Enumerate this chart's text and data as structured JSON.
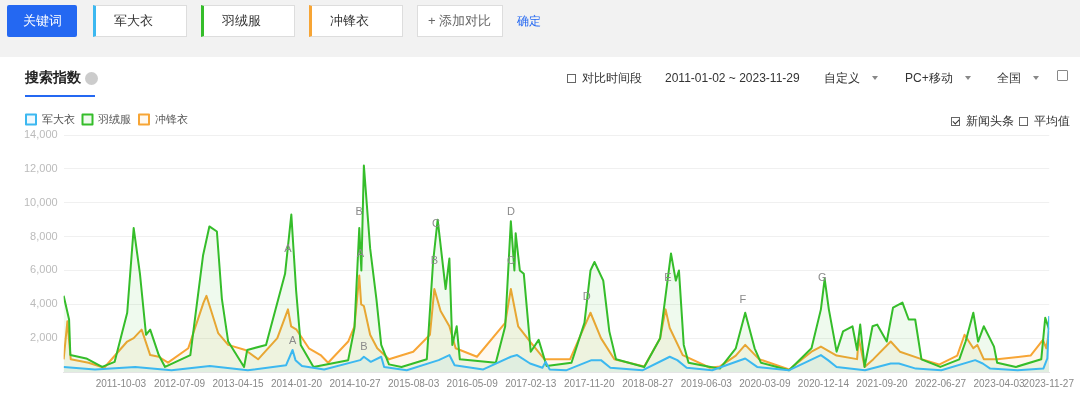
{
  "chart_data": {
    "type": "area",
    "title": "搜索指数",
    "annotations": [
      "关键词",
      "军大衣",
      "羽绒服",
      "冲锋衣",
      "+ 添加对比",
      "确定",
      "对比时间段",
      "2011-01-02 ~ 2023-11-29",
      "自定义",
      "PC+移动",
      "全国",
      "新闻头条",
      "平均值",
      {
        "text": "A",
        "x": "2013-12-10",
        "y": 6700
      },
      {
        "text": "B",
        "x": "2014-11-16",
        "y": 8900
      },
      {
        "text": "A",
        "x": "2014-11-22",
        "y": 6400
      },
      {
        "text": "A",
        "x": "2014-01-01",
        "y": 1300
      },
      {
        "text": "B",
        "x": "2014-12-08",
        "y": 900
      },
      {
        "text": "C",
        "x": "2015-11-18",
        "y": 8200
      },
      {
        "text": "B",
        "x": "2015-11-10",
        "y": 6000
      },
      {
        "text": "D",
        "x": "2016-11-10",
        "y": 8900
      },
      {
        "text": "C",
        "x": "2016-11-10",
        "y": 6000
      },
      {
        "text": "D",
        "x": "2017-11-08",
        "y": 3900
      },
      {
        "text": "E",
        "x": "2018-12-01",
        "y": 5000
      },
      {
        "text": "F",
        "x": "2019-11-25",
        "y": 3700
      },
      {
        "text": "G",
        "x": "2020-12-08",
        "y": 5000
      }
    ],
    "xlim": [
      "2011-01-02",
      "2023-11-29"
    ],
    "xticks": [
      "2011-10-03",
      "2012-07-09",
      "2013-04-15",
      "2014-01-20",
      "2014-10-27",
      "2015-08-03",
      "2016-05-09",
      "2017-02-13",
      "2017-11-20",
      "2018-08-27",
      "2019-06-03",
      "2020-03-09",
      "2020-12-14",
      "2021-09-20",
      "2022-06-27",
      "2023-04-03",
      "2023-11-27"
    ],
    "ylim": [
      0,
      14000
    ],
    "yticks": [
      {
        "value": 2000,
        "label": "2,000"
      },
      {
        "value": 4000,
        "label": "4,000"
      },
      {
        "value": 6000,
        "label": "6,000"
      },
      {
        "value": 8000,
        "label": "8,000"
      },
      {
        "value": 10000,
        "label": "10,000"
      },
      {
        "value": 12000,
        "label": "12,000"
      },
      {
        "value": 14000,
        "label": "14,000"
      }
    ],
    "grid": "y",
    "legend": "top left",
    "marker": "none",
    "line_style": "solid",
    "series": [
      {
        "name": "军大衣",
        "color": "#3cb8f0",
        "x": [
          "2011-01-02",
          "2011-06-01",
          "2011-12-10",
          "2012-06-01",
          "2012-12-01",
          "2013-06-01",
          "2013-12-01",
          "2014-01-01",
          "2014-01-15",
          "2014-02-15",
          "2014-06-01",
          "2014-11-20",
          "2014-12-08",
          "2015-01-10",
          "2015-03-01",
          "2015-03-15",
          "2015-07-01",
          "2015-12-01",
          "2016-01-21",
          "2016-02-15",
          "2016-07-01",
          "2016-11-10",
          "2016-12-10",
          "2017-02-10",
          "2017-04-10",
          "2017-04-25",
          "2017-05-15",
          "2017-08-01",
          "2017-12-01",
          "2018-01-15",
          "2018-03-01",
          "2018-08-01",
          "2018-12-10",
          "2019-01-15",
          "2019-03-01",
          "2019-07-01",
          "2019-12-06",
          "2020-02-01",
          "2020-07-01",
          "2020-12-02",
          "2021-01-05",
          "2021-02-15",
          "2021-07-01",
          "2021-11-01",
          "2021-12-10",
          "2022-03-01",
          "2022-07-01",
          "2022-12-10",
          "2023-01-15",
          "2023-02-20",
          "2023-07-01",
          "2023-11-01",
          "2023-11-20",
          "2023-11-29"
        ],
        "values": [
          300,
          150,
          300,
          100,
          350,
          100,
          400,
          1300,
          700,
          350,
          150,
          700,
          900,
          600,
          900,
          300,
          100,
          700,
          1000,
          400,
          150,
          900,
          1000,
          500,
          250,
          600,
          150,
          100,
          700,
          700,
          250,
          100,
          900,
          700,
          250,
          100,
          800,
          300,
          100,
          1000,
          700,
          300,
          100,
          500,
          500,
          200,
          100,
          700,
          500,
          200,
          100,
          200,
          800,
          3300
        ]
      },
      {
        "name": "羽绒服",
        "color": "#35bd2a",
        "x": [
          "2011-01-02",
          "2011-01-28",
          "2011-02-03",
          "2011-04-20",
          "2011-07-05",
          "2011-09-03",
          "2011-11-02",
          "2011-12-03",
          "2012-01-02",
          "2012-01-31",
          "2012-02-20",
          "2012-04-01",
          "2012-05-01",
          "2012-08-30",
          "2012-10-30",
          "2012-11-29",
          "2013-01-04",
          "2013-01-28",
          "2013-02-27",
          "2013-05-14",
          "2013-05-29",
          "2013-08-27",
          "2013-11-26",
          "2013-12-26",
          "2014-01-18",
          "2014-02-09",
          "2014-04-11",
          "2014-09-24",
          "2014-10-24",
          "2014-11-16",
          "2014-11-26",
          "2014-12-08",
          "2015-01-07",
          "2015-02-06",
          "2015-03-01",
          "2015-04-07",
          "2015-06-06",
          "2015-10-05",
          "2015-11-04",
          "2015-11-26",
          "2016-01-03",
          "2016-01-21",
          "2016-02-04",
          "2016-02-25",
          "2016-03-11",
          "2016-08-30",
          "2016-10-14",
          "2016-11-10",
          "2016-11-27",
          "2016-12-03",
          "2016-12-23",
          "2017-01-11",
          "2017-02-13",
          "2017-03-23",
          "2017-04-30",
          "2017-08-27",
          "2017-10-28",
          "2017-11-26",
          "2017-12-15",
          "2018-01-26",
          "2018-02-24",
          "2018-03-28",
          "2018-08-10",
          "2018-10-25",
          "2018-12-16",
          "2019-01-08",
          "2019-01-23",
          "2019-02-15",
          "2019-03-10",
          "2019-06-23",
          "2019-08-07",
          "2019-10-22",
          "2019-12-06",
          "2020-01-20",
          "2020-02-19",
          "2020-07-03",
          "2020-10-18",
          "2020-12-02",
          "2020-12-20",
          "2021-01-09",
          "2021-02-15",
          "2021-03-18",
          "2021-05-02",
          "2021-05-24",
          "2021-06-08",
          "2021-06-29",
          "2021-08-06",
          "2021-08-28",
          "2021-10-13",
          "2021-11-12",
          "2021-12-27",
          "2022-01-26",
          "2022-02-26",
          "2022-03-28",
          "2022-06-26",
          "2022-09-25",
          "2022-10-25",
          "2022-12-01",
          "2022-12-24",
          "2023-01-20",
          "2023-03-10",
          "2023-03-25",
          "2023-06-23",
          "2023-10-22",
          "2023-11-10",
          "2023-11-29"
        ],
        "values": [
          4500,
          3100,
          1000,
          800,
          300,
          600,
          3500,
          8500,
          5800,
          2200,
          2500,
          1000,
          300,
          1000,
          6900,
          8600,
          8300,
          4300,
          1800,
          300,
          1300,
          1600,
          5800,
          9300,
          4800,
          1600,
          300,
          700,
          2600,
          8500,
          6000,
          12200,
          7300,
          4300,
          1600,
          450,
          300,
          750,
          6500,
          9000,
          4900,
          6700,
          1600,
          2700,
          750,
          550,
          2700,
          8900,
          6000,
          8200,
          6000,
          5800,
          1200,
          1900,
          350,
          550,
          2900,
          6000,
          6500,
          5400,
          2400,
          750,
          300,
          2000,
          7000,
          5400,
          6000,
          1600,
          550,
          300,
          200,
          1400,
          3500,
          1400,
          550,
          100,
          1400,
          3700,
          5500,
          3700,
          1200,
          2400,
          2700,
          1300,
          2800,
          300,
          2700,
          2800,
          1800,
          3800,
          4100,
          3100,
          3100,
          750,
          300,
          750,
          1800,
          3500,
          1800,
          2700,
          1500,
          550,
          300,
          750,
          3200,
          2500
        ]
      },
      {
        "name": "冲锋衣",
        "color": "#f7a535",
        "x": [
          "2011-01-02",
          "2011-01-20",
          "2011-02-05",
          "2011-05-01",
          "2011-07-15",
          "2011-11-02",
          "2011-12-03",
          "2012-01-10",
          "2012-02-20",
          "2012-04-01",
          "2012-05-15",
          "2012-08-20",
          "2012-11-01",
          "2012-11-15",
          "2013-01-10",
          "2013-02-27",
          "2013-05-20",
          "2013-07-20",
          "2013-10-20",
          "2013-12-10",
          "2013-12-25",
          "2014-01-20",
          "2014-03-20",
          "2014-05-15",
          "2014-06-20",
          "2014-09-24",
          "2014-10-24",
          "2014-11-16",
          "2014-11-25",
          "2014-12-08",
          "2015-01-07",
          "2015-02-10",
          "2015-04-07",
          "2015-08-01",
          "2015-10-20",
          "2015-11-10",
          "2015-12-10",
          "2016-01-21",
          "2016-02-20",
          "2016-06-01",
          "2016-10-14",
          "2016-11-10",
          "2016-12-15",
          "2017-02-10",
          "2017-04-20",
          "2017-08-20",
          "2017-10-28",
          "2017-11-26",
          "2018-01-15",
          "2018-03-20",
          "2018-08-10",
          "2018-10-25",
          "2018-11-20",
          "2018-12-10",
          "2019-02-10",
          "2019-06-20",
          "2019-08-07",
          "2019-10-22",
          "2019-12-06",
          "2020-02-10",
          "2020-07-03",
          "2020-10-18",
          "2020-12-02",
          "2021-02-15",
          "2021-05-24",
          "2021-06-01",
          "2021-06-29",
          "2021-08-10",
          "2021-11-01",
          "2021-12-15",
          "2022-03-28",
          "2022-06-20",
          "2022-09-15",
          "2022-10-20",
          "2022-12-01",
          "2022-12-20",
          "2023-01-20",
          "2023-03-25",
          "2023-09-01",
          "2023-10-30",
          "2023-11-15",
          "2023-11-29"
        ],
        "values": [
          750,
          3000,
          750,
          550,
          250,
          1800,
          2000,
          2500,
          1000,
          900,
          550,
          1400,
          4100,
          4500,
          2300,
          1600,
          1300,
          750,
          2000,
          3700,
          2700,
          2500,
          1400,
          1000,
          550,
          1800,
          2700,
          5700,
          4000,
          3900,
          2200,
          1400,
          750,
          1200,
          2200,
          4900,
          3600,
          2700,
          1400,
          900,
          2900,
          4900,
          2700,
          1800,
          750,
          750,
          2700,
          3500,
          2000,
          750,
          330,
          2000,
          3700,
          2600,
          1000,
          250,
          330,
          970,
          1600,
          760,
          150,
          1200,
          1500,
          970,
          760,
          2000,
          300,
          760,
          1800,
          1200,
          760,
          440,
          970,
          2200,
          1400,
          1600,
          760,
          760,
          970,
          1900,
          1400,
          2450
        ]
      }
    ]
  }
}
